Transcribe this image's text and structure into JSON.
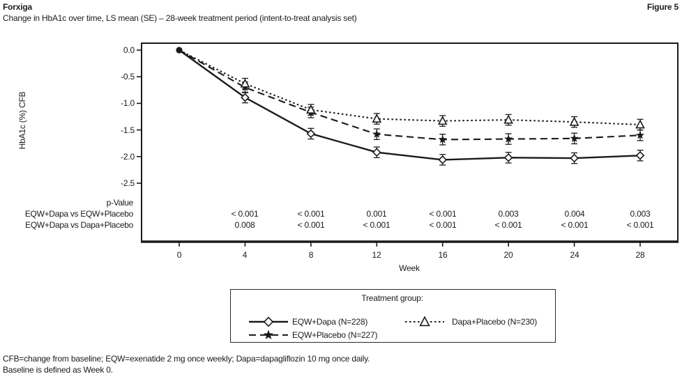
{
  "header": {
    "product": "Forxiga",
    "figure_label": "Figure 5",
    "subtitle": "Change in HbA1c over time, LS mean (SE) – 28-week treatment period (intent-to-treat analysis set)"
  },
  "chart_data": {
    "type": "line",
    "title": "Change in HbA1c over time, LS mean (SE) – 28-week treatment period (intent-to-treat analysis set)",
    "xlabel": "Week",
    "ylabel": "HbA1c (%) CFB",
    "x": [
      0,
      4,
      8,
      12,
      16,
      20,
      24,
      28
    ],
    "xticks": [
      0,
      4,
      8,
      12,
      16,
      20,
      24,
      28
    ],
    "yticks": [
      "0.0",
      "-0.5",
      "-1.0",
      "-1.5",
      "-2.0",
      "-2.5"
    ],
    "xlim": [
      0,
      28
    ],
    "ylim": [
      -2.5,
      0.0
    ],
    "grid": false,
    "error_bars": "SE",
    "baseline_point": {
      "marker": "filled-circle",
      "x": 0,
      "y": 0.0
    },
    "series": [
      {
        "name": "EQW+Dapa (N=228)",
        "marker": "diamond",
        "line_style": "solid",
        "se": 0.1,
        "values": [
          0.0,
          -0.89,
          -1.57,
          -1.92,
          -2.06,
          -2.02,
          -2.03,
          -1.98
        ]
      },
      {
        "name": "EQW+Placebo (N=227)",
        "marker": "star",
        "line_style": "dashed",
        "se": 0.1,
        "values": [
          0.0,
          -0.7,
          -1.17,
          -1.58,
          -1.68,
          -1.67,
          -1.66,
          -1.6
        ]
      },
      {
        "name": "Dapa+Placebo (N=230)",
        "marker": "triangle",
        "line_style": "dotted",
        "se": 0.1,
        "values": [
          0.0,
          -0.63,
          -1.12,
          -1.29,
          -1.33,
          -1.31,
          -1.35,
          -1.4
        ]
      }
    ],
    "legend_title": "Treatment group:",
    "legend_position": "bottom"
  },
  "pvalue_table": {
    "header": "p-Value",
    "weeks": [
      4,
      8,
      12,
      16,
      20,
      24,
      28
    ],
    "rows": [
      {
        "label": "EQW+Dapa vs EQW+Placebo",
        "values": [
          "< 0.001",
          "< 0.001",
          "0.001",
          "< 0.001",
          "0.003",
          "0.004",
          "0.003"
        ]
      },
      {
        "label": "EQW+Dapa vs Dapa+Placebo",
        "values": [
          "0.008",
          "< 0.001",
          "< 0.001",
          "< 0.001",
          "< 0.001",
          "< 0.001",
          "< 0.001"
        ]
      }
    ]
  },
  "footnotes": [
    "CFB=change from baseline; EQW=exenatide 2 mg once weekly; Dapa=dapagliflozin 10 mg once daily.",
    "Baseline is defined as Week 0."
  ],
  "colors": {
    "ink": "#1a1a1a",
    "background": "#ffffff"
  }
}
